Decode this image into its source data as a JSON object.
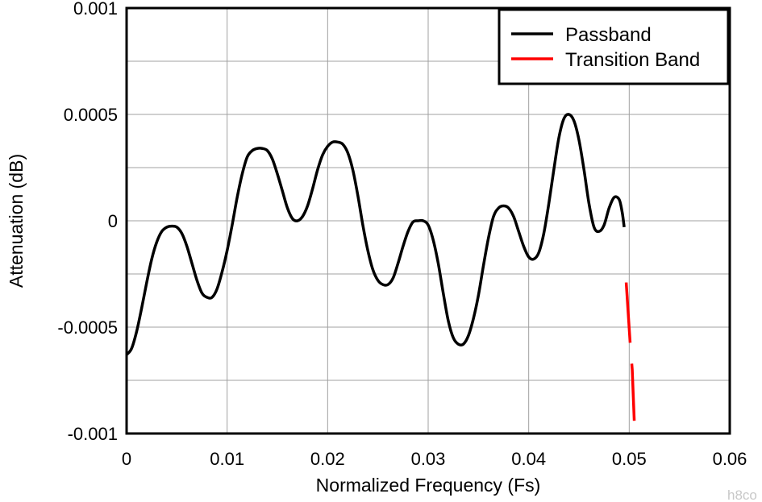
{
  "chart_data": {
    "type": "line",
    "xlabel": "Normalized Frequency (Fs)",
    "ylabel": "Attenuation (dB)",
    "xlim": [
      0,
      0.06
    ],
    "ylim": [
      -0.001,
      0.001
    ],
    "x_ticks": [
      "0",
      "0.01",
      "0.02",
      "0.03",
      "0.04",
      "0.05",
      "0.06"
    ],
    "y_ticks": [
      "-0.001",
      "-0.0005",
      "0",
      "0.0005",
      "0.001"
    ],
    "x_tick_values": [
      0,
      0.01,
      0.02,
      0.03,
      0.04,
      0.05,
      0.06
    ],
    "y_tick_values": [
      -0.001,
      -0.0005,
      0,
      0.0005,
      0.001
    ],
    "x_grid": [
      0,
      0.01,
      0.02,
      0.03,
      0.04,
      0.05,
      0.06
    ],
    "y_grid": [
      -0.001,
      -0.00075,
      -0.0005,
      -0.00025,
      0,
      0.00025,
      0.0005,
      0.00075,
      0.001
    ],
    "grid": true,
    "legend_position": "top-right",
    "series": [
      {
        "name": "Passband",
        "color": "#000000",
        "style": "solid",
        "points": [
          [
            0.0,
            -0.00063
          ],
          [
            0.0005,
            -0.0006
          ],
          [
            0.001,
            -0.00052
          ],
          [
            0.0015,
            -0.00041
          ],
          [
            0.002,
            -0.00029
          ],
          [
            0.0025,
            -0.00018
          ],
          [
            0.003,
            -0.0001
          ],
          [
            0.0035,
            -5e-05
          ],
          [
            0.004,
            -3e-05
          ],
          [
            0.0045,
            -2.5e-05
          ],
          [
            0.005,
            -3e-05
          ],
          [
            0.0055,
            -6e-05
          ],
          [
            0.006,
            -0.00012
          ],
          [
            0.0065,
            -0.0002
          ],
          [
            0.007,
            -0.00028
          ],
          [
            0.0075,
            -0.00034
          ],
          [
            0.008,
            -0.00036
          ],
          [
            0.0085,
            -0.00036
          ],
          [
            0.009,
            -0.00032
          ],
          [
            0.0095,
            -0.00024
          ],
          [
            0.01,
            -0.00014
          ],
          [
            0.0105,
            -2e-05
          ],
          [
            0.011,
            0.00011
          ],
          [
            0.0115,
            0.00022
          ],
          [
            0.012,
            0.0003
          ],
          [
            0.0125,
            0.00033
          ],
          [
            0.013,
            0.00034
          ],
          [
            0.0135,
            0.00034
          ],
          [
            0.014,
            0.00033
          ],
          [
            0.0145,
            0.00029
          ],
          [
            0.015,
            0.00022
          ],
          [
            0.0155,
            0.00014
          ],
          [
            0.016,
            6e-05
          ],
          [
            0.0165,
            1e-05
          ],
          [
            0.017,
            0.0
          ],
          [
            0.0175,
            2e-05
          ],
          [
            0.018,
            7e-05
          ],
          [
            0.0185,
            0.00015
          ],
          [
            0.019,
            0.00024
          ],
          [
            0.0195,
            0.00031
          ],
          [
            0.02,
            0.00035
          ],
          [
            0.0205,
            0.00037
          ],
          [
            0.021,
            0.00037
          ],
          [
            0.0215,
            0.00036
          ],
          [
            0.022,
            0.00032
          ],
          [
            0.0225,
            0.00024
          ],
          [
            0.023,
            0.00012
          ],
          [
            0.0235,
            -2e-05
          ],
          [
            0.024,
            -0.00014
          ],
          [
            0.0245,
            -0.00023
          ],
          [
            0.025,
            -0.00028
          ],
          [
            0.0255,
            -0.0003
          ],
          [
            0.026,
            -0.0003
          ],
          [
            0.0265,
            -0.00027
          ],
          [
            0.027,
            -0.0002
          ],
          [
            0.0275,
            -0.00012
          ],
          [
            0.028,
            -5e-05
          ],
          [
            0.0285,
            -5e-06
          ],
          [
            0.029,
            0.0
          ],
          [
            0.0295,
            0.0
          ],
          [
            0.03,
            -2e-05
          ],
          [
            0.0305,
            -9e-05
          ],
          [
            0.031,
            -0.0002
          ],
          [
            0.0315,
            -0.00034
          ],
          [
            0.032,
            -0.00047
          ],
          [
            0.0325,
            -0.00055
          ],
          [
            0.033,
            -0.00058
          ],
          [
            0.0335,
            -0.00058
          ],
          [
            0.034,
            -0.00054
          ],
          [
            0.0345,
            -0.00046
          ],
          [
            0.035,
            -0.00035
          ],
          [
            0.0355,
            -0.00021
          ],
          [
            0.036,
            -8e-05
          ],
          [
            0.0365,
            2e-05
          ],
          [
            0.037,
            6e-05
          ],
          [
            0.0375,
            7e-05
          ],
          [
            0.038,
            6e-05
          ],
          [
            0.0385,
            2e-05
          ],
          [
            0.039,
            -5e-05
          ],
          [
            0.0395,
            -0.00012
          ],
          [
            0.04,
            -0.00017
          ],
          [
            0.0405,
            -0.00018
          ],
          [
            0.041,
            -0.00015
          ],
          [
            0.0415,
            -6e-05
          ],
          [
            0.042,
            8e-05
          ],
          [
            0.0425,
            0.00024
          ],
          [
            0.043,
            0.00039
          ],
          [
            0.0435,
            0.00048
          ],
          [
            0.044,
            0.0005
          ],
          [
            0.0445,
            0.00047
          ],
          [
            0.045,
            0.00038
          ],
          [
            0.0455,
            0.00024
          ],
          [
            0.046,
            8e-05
          ],
          [
            0.0465,
            -3e-05
          ],
          [
            0.047,
            -5e-05
          ],
          [
            0.0475,
            -2e-05
          ],
          [
            0.048,
            6e-05
          ],
          [
            0.0485,
            0.00011
          ],
          [
            0.049,
            0.0001
          ],
          [
            0.0493,
            4e-05
          ],
          [
            0.0495,
            -3e-05
          ]
        ]
      },
      {
        "name": "Transition Band",
        "color": "#ff0000",
        "style": "dashed",
        "points": [
          [
            0.0497,
            -0.00029
          ],
          [
            0.0501,
            -0.00058
          ],
          [
            0.0503,
            -0.0007
          ],
          [
            0.0505,
            -0.00094
          ]
        ]
      }
    ]
  },
  "watermark": "h8co"
}
